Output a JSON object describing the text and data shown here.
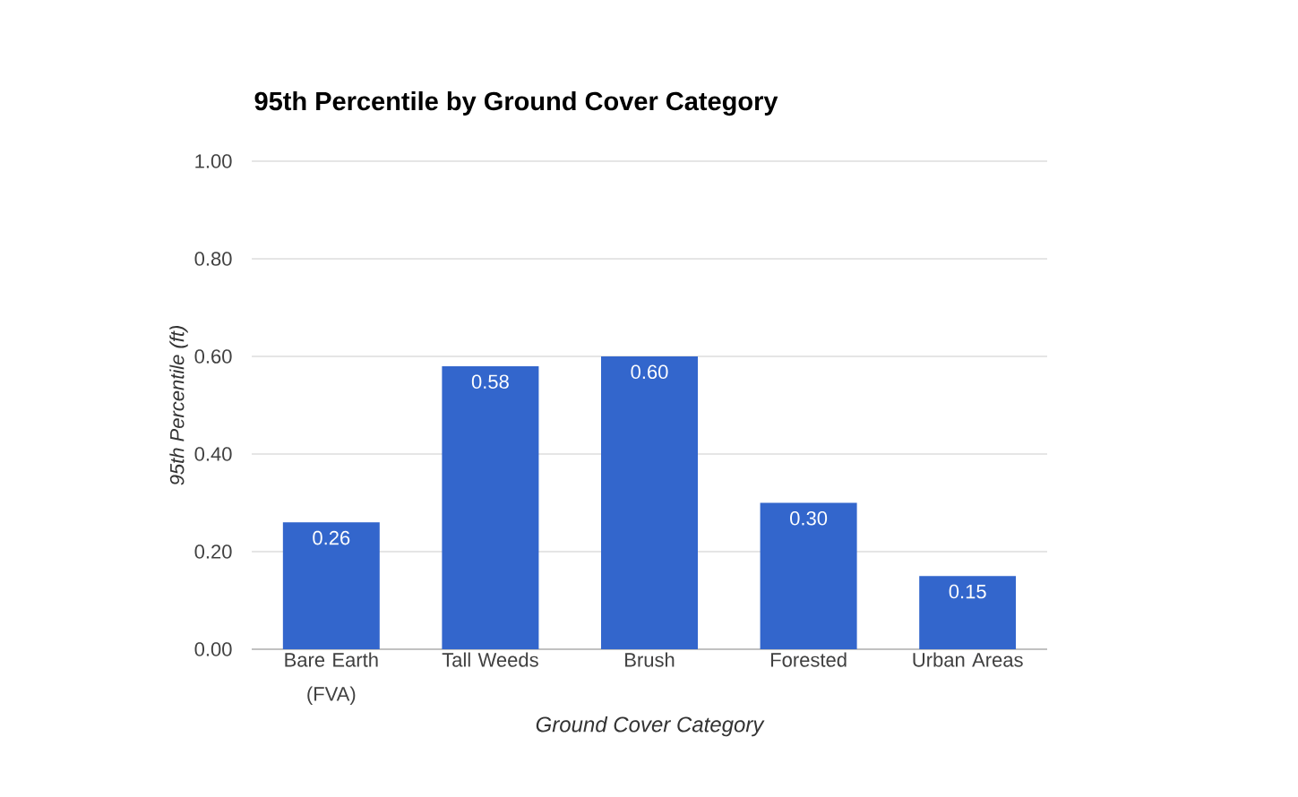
{
  "chart_data": {
    "type": "bar",
    "title": "95th Percentile by Ground Cover Category",
    "xlabel": "Ground Cover Category",
    "ylabel": "95th Percentile (ft)",
    "categories": [
      "Bare Earth (FVA)",
      "Tall Weeds",
      "Brush",
      "Forested",
      "Urban Areas"
    ],
    "values": [
      0.26,
      0.58,
      0.6,
      0.3,
      0.15
    ],
    "value_labels": [
      "0.26",
      "0.58",
      "0.60",
      "0.30",
      "0.15"
    ],
    "color": "#3366cc",
    "ylim": [
      0,
      1
    ],
    "yticks": [
      {
        "value": 0,
        "label": "0.00"
      },
      {
        "value": 0.2,
        "label": "0.20"
      },
      {
        "value": 0.4,
        "label": "0.40"
      },
      {
        "value": 0.6,
        "label": "0.60"
      },
      {
        "value": 0.8,
        "label": "0.80"
      },
      {
        "value": 1,
        "label": "1.00"
      }
    ],
    "grid": "y"
  }
}
